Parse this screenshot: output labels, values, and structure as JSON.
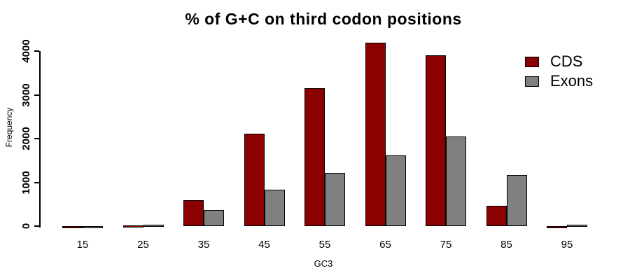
{
  "chart_data": {
    "type": "bar",
    "title": "% of G+C on third codon positions",
    "xlabel": "GC3",
    "ylabel": "Frequency",
    "categories": [
      "15",
      "25",
      "35",
      "45",
      "55",
      "65",
      "75",
      "85",
      "95"
    ],
    "series": [
      {
        "name": "CDS",
        "color": "#8B0000",
        "values": [
          5,
          10,
          590,
          2120,
          3150,
          4200,
          3900,
          460,
          5
        ]
      },
      {
        "name": "Exons",
        "color": "#808080",
        "values": [
          5,
          40,
          370,
          830,
          1220,
          1620,
          2050,
          1170,
          30
        ]
      }
    ],
    "ylim": [
      0,
      4000
    ],
    "yticks": [
      0,
      1000,
      2000,
      3000,
      4000
    ],
    "bar_border_color": "#000000",
    "background_color": "#FFFFFF",
    "legend_position": "top-right",
    "grid": false
  }
}
